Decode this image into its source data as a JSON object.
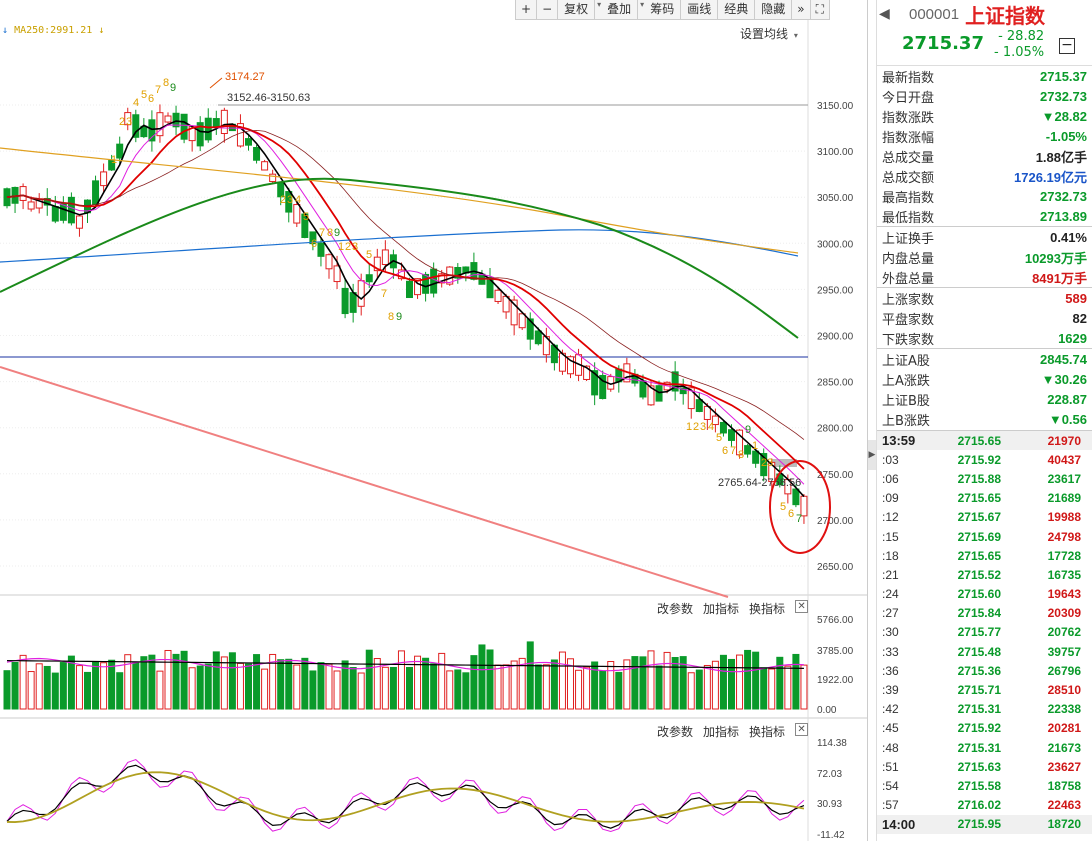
{
  "toolbar": {
    "buttons": [
      "+",
      "−",
      "复权",
      "叠加",
      "筹码",
      "画线",
      "经典",
      "隐藏",
      "»",
      "⛶"
    ]
  },
  "chart": {
    "ma250_label": "MA250:2991.21",
    "settings_label": "设置均线",
    "hi_label": "3174.27",
    "range_label": "3152.46-3150.63",
    "range2_label": "2765.64-2758.56",
    "y_ticks": [
      "3150.00",
      "3100.00",
      "3050.00",
      "3000.00",
      "2950.00",
      "2900.00",
      "2850.00",
      "2800.00",
      "2750.00",
      "2700.00",
      "2650.00"
    ],
    "vol_ticks": [
      "5766.00",
      "3785.00",
      "1922.00",
      "0.00"
    ],
    "ind_ticks": [
      "114.38",
      "72.03",
      "30.93",
      "-11.42"
    ],
    "panel_ctrl": [
      "改参数",
      "加指标",
      "换指标"
    ],
    "td_counts_top": [
      "1",
      "2",
      "3",
      "4",
      "5",
      "6",
      "7",
      "8",
      "9"
    ],
    "td_counts_mid": [
      "2",
      "3",
      "4",
      "5",
      "6",
      "7",
      "8",
      "9"
    ],
    "td_counts_mid2": [
      "1",
      "2",
      "3",
      "5",
      "7",
      "8",
      "9"
    ],
    "td_counts_low": [
      "1",
      "2",
      "3",
      "4",
      "5",
      "6",
      "7",
      "8",
      "9"
    ],
    "td_counts_end": [
      "1",
      "2",
      "3",
      "5",
      "6",
      "7"
    ],
    "colors": {
      "up": "#e02020",
      "down": "#0a9a2a",
      "ma5": "#000000",
      "ma10": "#e020e0",
      "ma20": "#e00000",
      "ma60": "#1a8a1a",
      "ma120": "#e0a020",
      "ma250": "#1a6fd0"
    }
  },
  "header": {
    "back": "◀",
    "code": "000001",
    "name": "上证指数",
    "price": "2715.37",
    "change": "- 28.82",
    "change_pct": "- 1.05%",
    "minus_btn": "−"
  },
  "stats": [
    {
      "k": "最新指数",
      "v": "2715.37",
      "c": "green"
    },
    {
      "k": "今日开盘",
      "v": "2732.73",
      "c": "green"
    },
    {
      "k": "指数涨跌",
      "v": "▼28.82",
      "c": "green"
    },
    {
      "k": "指数涨幅",
      "v": "-1.05%",
      "c": "green"
    },
    {
      "k": "总成交量",
      "v": "1.88亿手",
      "c": "black"
    },
    {
      "k": "总成交额",
      "v": "1726.19亿元",
      "c": "blue"
    },
    {
      "k": "最高指数",
      "v": "2732.73",
      "c": "green"
    },
    {
      "k": "最低指数",
      "v": "2713.89",
      "c": "green"
    }
  ],
  "stats2": [
    {
      "k": "上证换手",
      "v": "0.41%",
      "c": "black"
    },
    {
      "k": "内盘总量",
      "v": "10293万手",
      "c": "green"
    },
    {
      "k": "外盘总量",
      "v": "8491万手",
      "c": "red"
    }
  ],
  "stats3": [
    {
      "k": "上涨家数",
      "v": "589",
      "c": "red"
    },
    {
      "k": "平盘家数",
      "v": "82",
      "c": "black"
    },
    {
      "k": "下跌家数",
      "v": "1629",
      "c": "green"
    }
  ],
  "stats4": [
    {
      "k": "上证A股",
      "v": "2845.74",
      "c": "green"
    },
    {
      "k": "上A涨跌",
      "v": "▼30.26",
      "c": "green"
    },
    {
      "k": "上证B股",
      "v": "228.87",
      "c": "green"
    },
    {
      "k": "上B涨跌",
      "v": "▼0.56",
      "c": "green"
    }
  ],
  "ticks": [
    {
      "t": "13:59",
      "p": "2715.65",
      "v": "21970",
      "c": "red",
      "bold": true
    },
    {
      "t": ":03",
      "p": "2715.92",
      "v": "40437",
      "c": "red"
    },
    {
      "t": ":06",
      "p": "2715.88",
      "v": "23617",
      "c": "green"
    },
    {
      "t": ":09",
      "p": "2715.65",
      "v": "21689",
      "c": "green"
    },
    {
      "t": ":12",
      "p": "2715.67",
      "v": "19988",
      "c": "red"
    },
    {
      "t": ":15",
      "p": "2715.69",
      "v": "24798",
      "c": "red"
    },
    {
      "t": ":18",
      "p": "2715.65",
      "v": "17728",
      "c": "green"
    },
    {
      "t": ":21",
      "p": "2715.52",
      "v": "16735",
      "c": "green"
    },
    {
      "t": ":24",
      "p": "2715.60",
      "v": "19643",
      "c": "red"
    },
    {
      "t": ":27",
      "p": "2715.84",
      "v": "20309",
      "c": "red"
    },
    {
      "t": ":30",
      "p": "2715.77",
      "v": "20762",
      "c": "green"
    },
    {
      "t": ":33",
      "p": "2715.48",
      "v": "39757",
      "c": "green"
    },
    {
      "t": ":36",
      "p": "2715.36",
      "v": "26796",
      "c": "green"
    },
    {
      "t": ":39",
      "p": "2715.71",
      "v": "28510",
      "c": "red"
    },
    {
      "t": ":42",
      "p": "2715.31",
      "v": "22338",
      "c": "green"
    },
    {
      "t": ":45",
      "p": "2715.92",
      "v": "20281",
      "c": "red"
    },
    {
      "t": ":48",
      "p": "2715.31",
      "v": "21673",
      "c": "green"
    },
    {
      "t": ":51",
      "p": "2715.63",
      "v": "23627",
      "c": "red"
    },
    {
      "t": ":54",
      "p": "2715.58",
      "v": "18758",
      "c": "green"
    },
    {
      "t": ":57",
      "p": "2716.02",
      "v": "22463",
      "c": "red"
    },
    {
      "t": "14:00",
      "p": "2715.95",
      "v": "18720",
      "c": "green",
      "bold": true
    }
  ]
}
